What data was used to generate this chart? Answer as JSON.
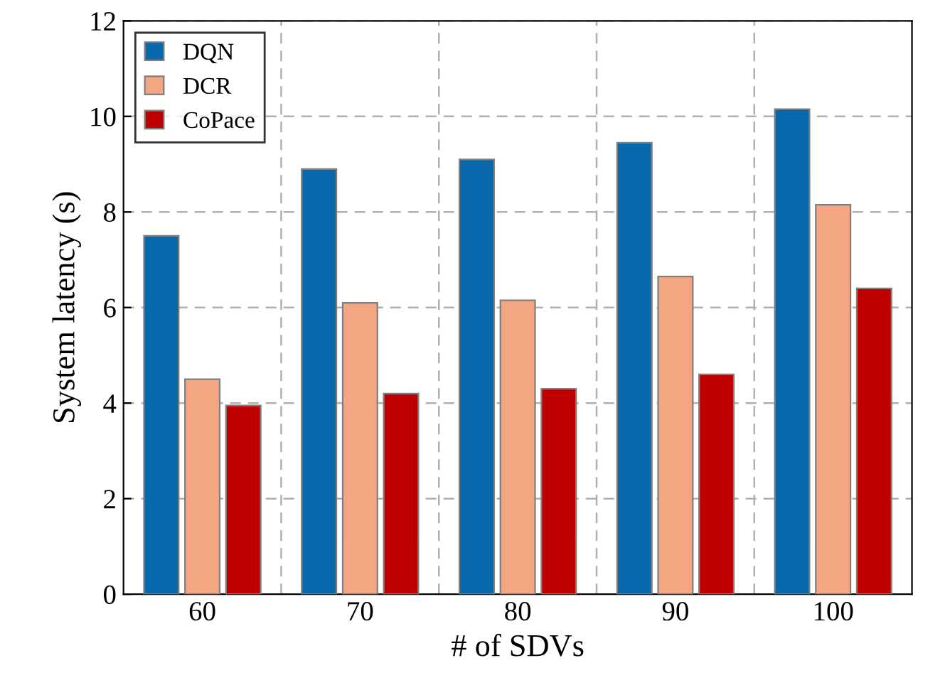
{
  "chart_data": {
    "type": "bar",
    "xlabel": "# of SDVs",
    "ylabel": "System latency (s)",
    "categories": [
      "60",
      "70",
      "80",
      "90",
      "100"
    ],
    "series": [
      {
        "name": "DQN",
        "color": "#0868ac",
        "values": [
          7.5,
          8.9,
          9.1,
          9.45,
          10.15
        ]
      },
      {
        "name": "DCR",
        "color": "#f4a582",
        "values": [
          4.5,
          6.1,
          6.15,
          6.65,
          8.15
        ]
      },
      {
        "name": "CoPace",
        "color": "#c00000",
        "values": [
          3.95,
          4.2,
          4.3,
          4.6,
          6.4
        ]
      }
    ],
    "ylim": [
      0,
      12
    ],
    "yticks": [
      0,
      2,
      4,
      6,
      8,
      10,
      12
    ],
    "grid": true,
    "legend": "top left"
  }
}
